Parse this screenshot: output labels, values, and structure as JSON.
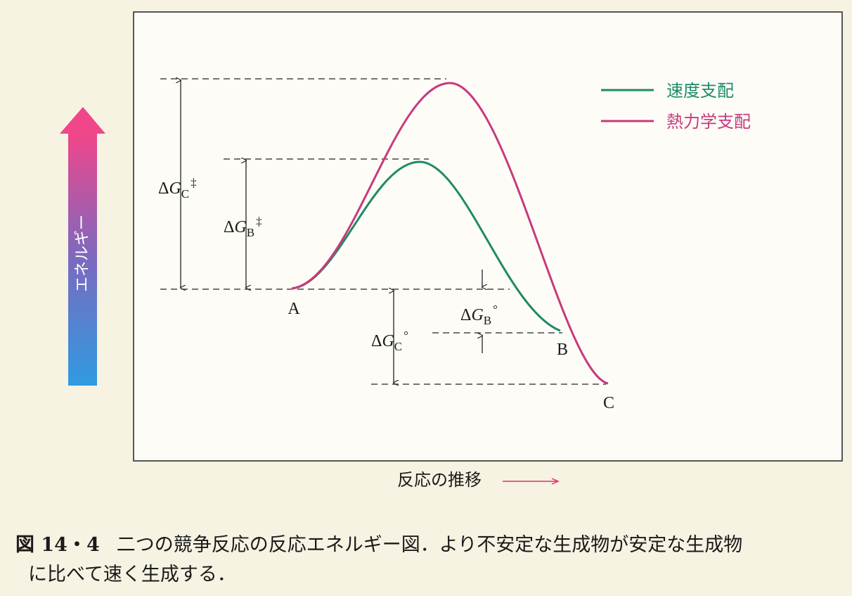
{
  "legend": [
    {
      "label": "速度支配",
      "color": "#1f8a68"
    },
    {
      "label": "熱力学支配",
      "color": "#c83a7c"
    }
  ],
  "energy_axis_label": "エネルギー",
  "x_axis_label": "反応の推移",
  "points": [
    "A",
    "B",
    "C"
  ],
  "delta_labels": {
    "gc_act": {
      "prefix": "Δ",
      "variable": "G",
      "sub": "C",
      "sup": "‡"
    },
    "gb_act": {
      "prefix": "Δ",
      "variable": "G",
      "sub": "B",
      "sup": "‡"
    },
    "gb_std": {
      "prefix": "Δ",
      "variable": "G",
      "sub": "B",
      "sup": "°"
    },
    "gc_std": {
      "prefix": "Δ",
      "variable": "G",
      "sub": "C",
      "sup": "°"
    }
  },
  "caption": {
    "number": "図 14・4",
    "lines": [
      "二つの競争反応の反応エネルギー図．より不安定な生成物が安定な生成物",
      "に比べて速く生成する．"
    ]
  }
}
